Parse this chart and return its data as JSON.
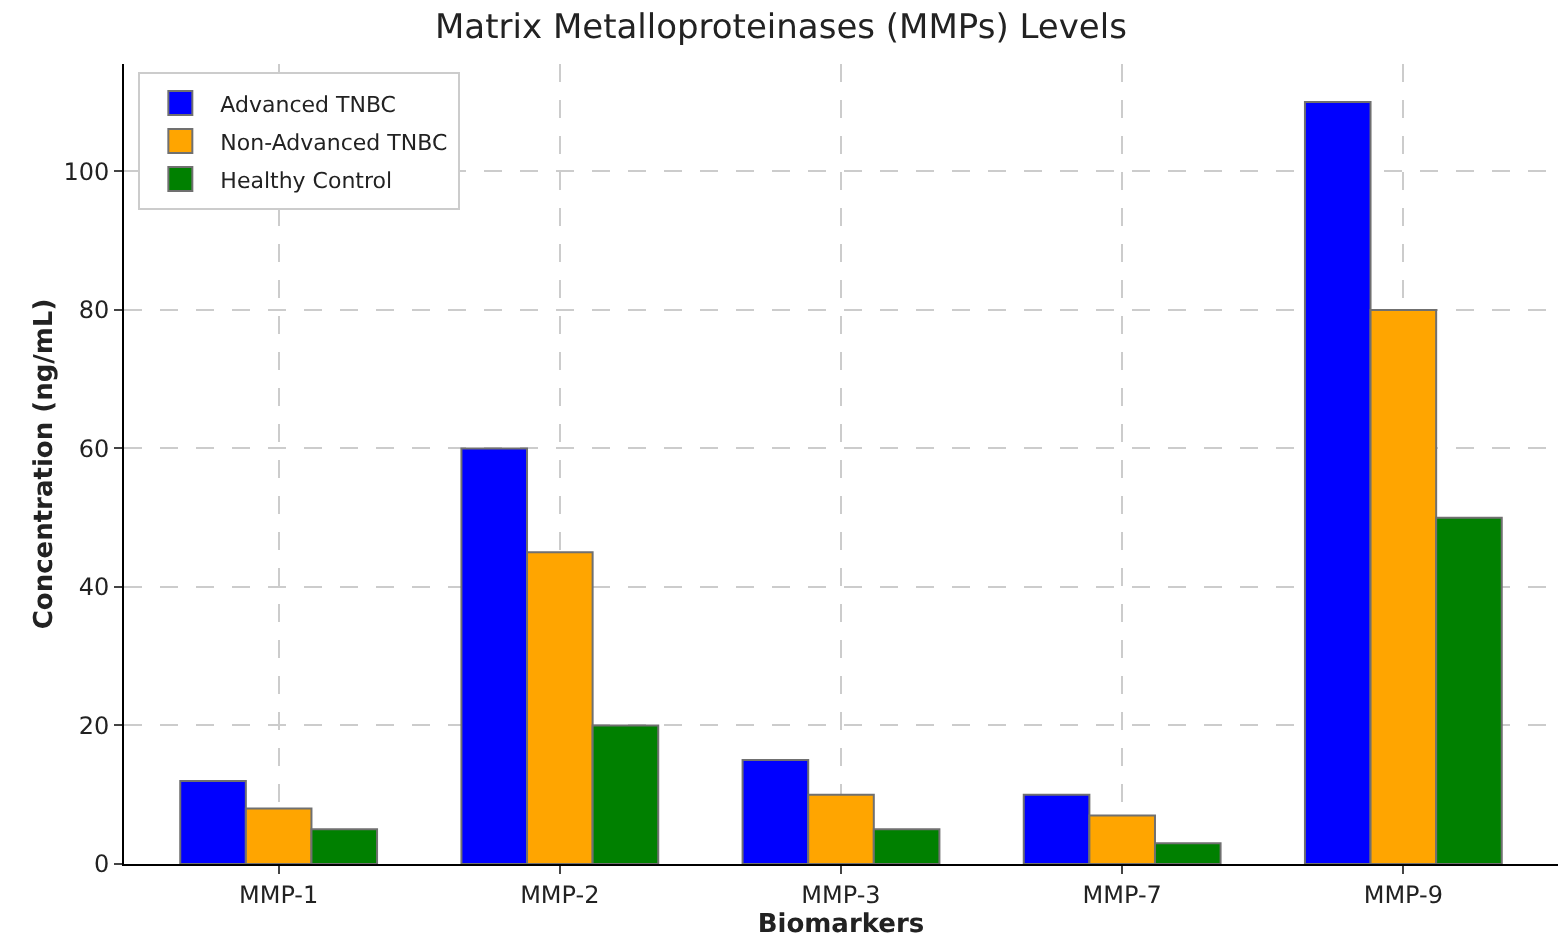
{
  "chart_data": {
    "type": "bar",
    "title": "Matrix Metalloproteinases (MMPs) Levels",
    "xlabel": "Biomarkers",
    "ylabel": "Concentration (ng/mL)",
    "categories": [
      "MMP-1",
      "MMP-2",
      "MMP-3",
      "MMP-7",
      "MMP-9"
    ],
    "series": [
      {
        "name": "Advanced TNBC",
        "color": "#0000ff",
        "values": [
          12,
          60,
          15,
          10,
          110
        ]
      },
      {
        "name": "Non-Advanced TNBC",
        "color": "#ffa500",
        "values": [
          8,
          45,
          10,
          7,
          80
        ]
      },
      {
        "name": "Healthy Control",
        "color": "#008000",
        "values": [
          5,
          20,
          5,
          3,
          50
        ]
      }
    ],
    "ylim": [
      0,
      115.5
    ],
    "yticks": [
      0,
      20,
      40,
      60,
      80,
      100
    ],
    "grid": true,
    "legend": "top left"
  }
}
